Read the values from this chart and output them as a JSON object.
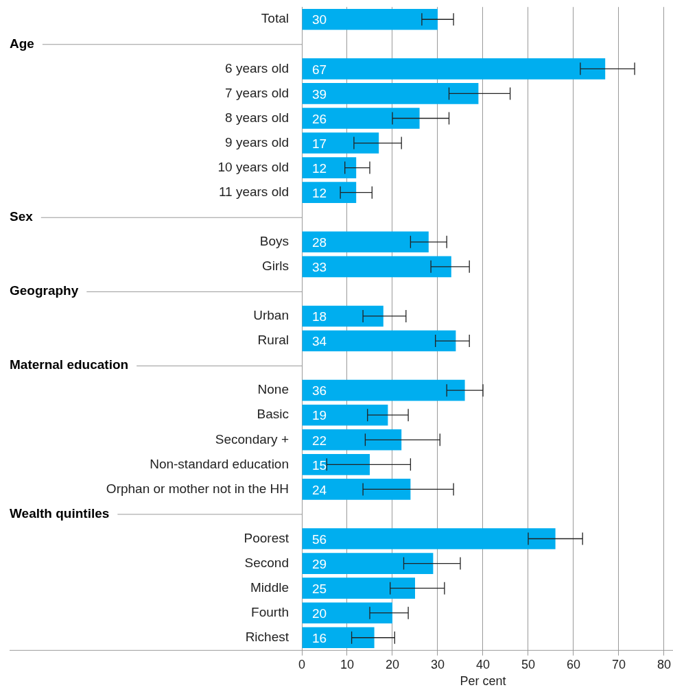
{
  "chart_data": {
    "type": "bar",
    "orientation": "horizontal",
    "xlabel": "Per cent",
    "categories": [
      "Total",
      null,
      "6 years old",
      "7 years old",
      "8 years old",
      "9 years old",
      "10 years old",
      "11 years old",
      null,
      "Boys",
      "Girls",
      null,
      "Urban",
      "Rural",
      null,
      "None",
      "Basic",
      "Secondary +",
      "Non-standard education",
      "Orphan or mother not in the HH",
      null,
      "Poorest",
      "Second",
      "Middle",
      "Fourth",
      "Richest"
    ],
    "annotations": [
      "Age",
      "Sex",
      "Geography",
      "Maternal education",
      "Wealth quintiles"
    ],
    "values": [
      30,
      null,
      67,
      39,
      26,
      17,
      12,
      12,
      null,
      28,
      33,
      null,
      18,
      34,
      null,
      36,
      19,
      22,
      15,
      24,
      null,
      56,
      29,
      25,
      20,
      16
    ],
    "errors": [
      [
        26.5,
        33.5
      ],
      null,
      [
        61.5,
        73.5
      ],
      [
        32.5,
        46
      ],
      [
        20,
        32.5
      ],
      [
        11.5,
        22
      ],
      [
        9.5,
        15
      ],
      [
        8.5,
        15.5
      ],
      null,
      [
        24,
        32
      ],
      [
        28.5,
        37
      ],
      null,
      [
        13.5,
        23
      ],
      [
        29.5,
        37
      ],
      null,
      [
        32,
        40
      ],
      [
        14.5,
        23.5
      ],
      [
        14,
        30.5
      ],
      [
        5.5,
        24
      ],
      [
        13.5,
        33.5
      ],
      null,
      [
        50,
        62
      ],
      [
        22.5,
        35
      ],
      [
        19.5,
        31.5
      ],
      [
        15,
        23.5
      ],
      [
        11,
        20.5
      ]
    ],
    "color": "#00aeef",
    "data_labels": true,
    "grid": "x",
    "legend": false,
    "xlim": [
      0,
      80
    ],
    "xticks": [
      0,
      10,
      20,
      30,
      40,
      50,
      60,
      70,
      80
    ]
  }
}
